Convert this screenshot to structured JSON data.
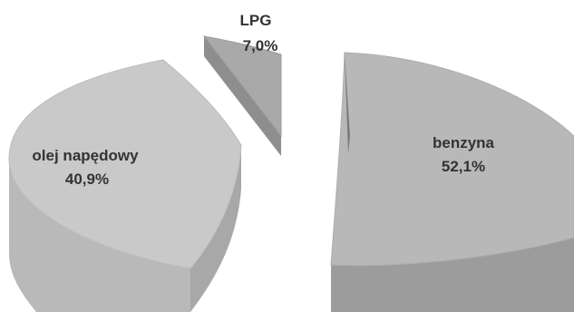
{
  "chart_data": {
    "type": "pie",
    "style": "3d-exploded",
    "title": "",
    "slices": [
      {
        "label": "benzyna",
        "value": 52.1,
        "value_text": "52,1%",
        "color": "#b8b8b8"
      },
      {
        "label": "olej napędowy",
        "value": 40.9,
        "value_text": "40,9%",
        "color": "#c9c9c9"
      },
      {
        "label": "LPG",
        "value": 7.0,
        "value_text": "7,0%",
        "color": "#a9a9a9"
      }
    ]
  }
}
